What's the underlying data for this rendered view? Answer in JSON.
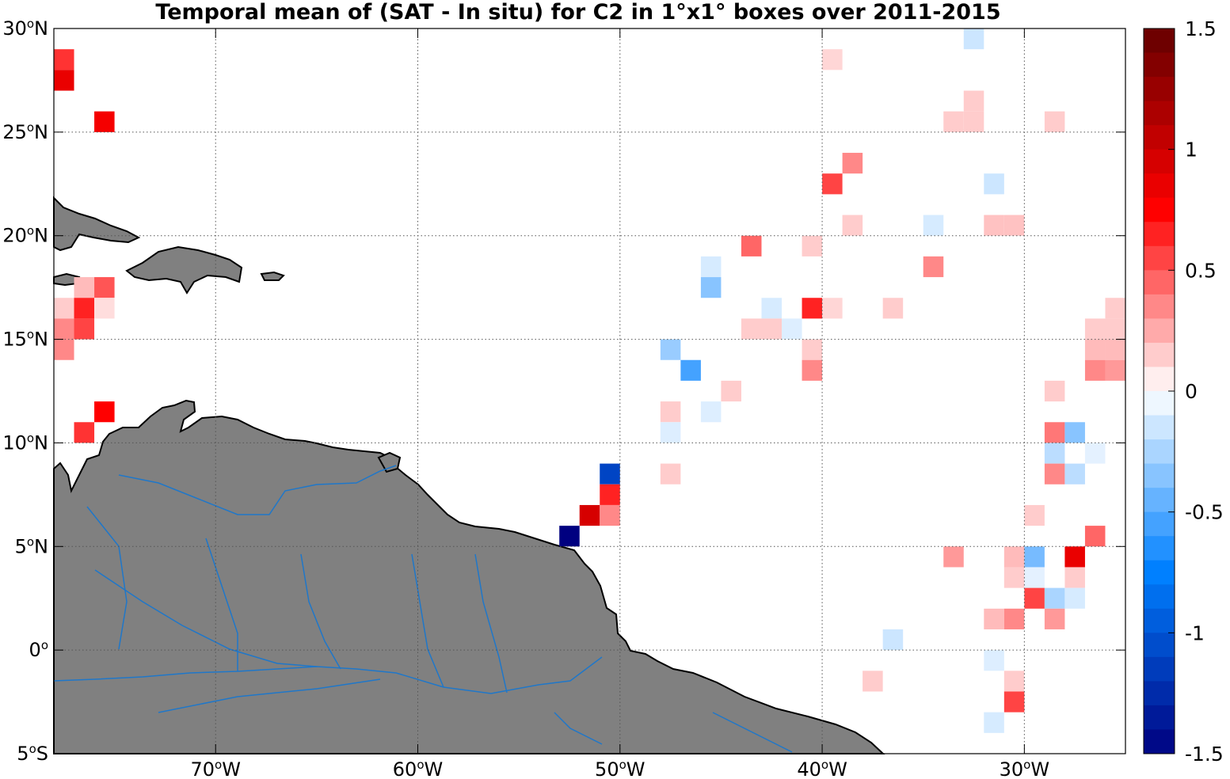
{
  "title": "Temporal mean of (SAT - In situ) for C2 in 1°x1° boxes over 2011-2015",
  "axes": {
    "lon_range": [
      -78,
      -25
    ],
    "lat_range": [
      -5,
      30
    ],
    "lat_ticks": [
      {
        "value": 30,
        "deg": "30",
        "hemi": "N"
      },
      {
        "value": 25,
        "deg": "25",
        "hemi": "N"
      },
      {
        "value": 20,
        "deg": "20",
        "hemi": "N"
      },
      {
        "value": 15,
        "deg": "15",
        "hemi": "N"
      },
      {
        "value": 10,
        "deg": "10",
        "hemi": "N"
      },
      {
        "value": 5,
        "deg": "5",
        "hemi": "N"
      },
      {
        "value": 0,
        "deg": "0",
        "hemi": ""
      },
      {
        "value": -5,
        "deg": "5",
        "hemi": "S"
      }
    ],
    "lon_ticks": [
      {
        "value": -70,
        "deg": "70",
        "hemi": "W"
      },
      {
        "value": -60,
        "deg": "60",
        "hemi": "W"
      },
      {
        "value": -50,
        "deg": "50",
        "hemi": "W"
      },
      {
        "value": -40,
        "deg": "40",
        "hemi": "W"
      },
      {
        "value": -30,
        "deg": "30",
        "hemi": "W"
      }
    ],
    "grid": "dotted"
  },
  "colorbar": {
    "range": [
      -1.5,
      1.5
    ],
    "tick_labels": [
      "1.5",
      "1",
      "0.5",
      "0",
      "-0.5",
      "-1",
      "-1.5"
    ],
    "tick_values": [
      1.5,
      1,
      0.5,
      0,
      -0.5,
      -1,
      -1.5
    ],
    "colormap": "blue-white-red"
  },
  "colors": {
    "land": "#808080",
    "coastline": "#000000",
    "rivers": "#1f77c9",
    "grid": "#555555"
  },
  "chart_data": {
    "type": "heatmap",
    "cell_size_deg": 1,
    "value_unit": "SAT - In situ",
    "cells": [
      {
        "lon": -77.5,
        "lat": 28.5,
        "v": 0.6
      },
      {
        "lon": -77.5,
        "lat": 27.5,
        "v": 0.85
      },
      {
        "lon": -75.5,
        "lat": 25.5,
        "v": 0.8
      },
      {
        "lon": -76.5,
        "lat": 17.5,
        "v": 0.2
      },
      {
        "lon": -75.5,
        "lat": 17.5,
        "v": 0.5
      },
      {
        "lon": -77.5,
        "lat": 16.5,
        "v": 0.15
      },
      {
        "lon": -76.5,
        "lat": 16.5,
        "v": 0.65
      },
      {
        "lon": -75.5,
        "lat": 16.5,
        "v": 0.1
      },
      {
        "lon": -77.5,
        "lat": 15.5,
        "v": 0.35
      },
      {
        "lon": -76.5,
        "lat": 15.5,
        "v": 0.55
      },
      {
        "lon": -77.5,
        "lat": 14.5,
        "v": 0.35
      },
      {
        "lon": -75.5,
        "lat": 11.5,
        "v": 0.75
      },
      {
        "lon": -76.5,
        "lat": 10.5,
        "v": 0.6
      },
      {
        "lon": -50.5,
        "lat": 8.5,
        "v": -1.1
      },
      {
        "lon": -50.5,
        "lat": 7.5,
        "v": 0.65
      },
      {
        "lon": -51.5,
        "lat": 6.5,
        "v": 0.95
      },
      {
        "lon": -50.5,
        "lat": 6.5,
        "v": 0.35
      },
      {
        "lon": -52.5,
        "lat": 5.5,
        "v": -1.5
      },
      {
        "lon": -32.5,
        "lat": 29.5,
        "v": -0.15
      },
      {
        "lon": -39.5,
        "lat": 28.5,
        "v": 0.12
      },
      {
        "lon": -32.5,
        "lat": 26.5,
        "v": 0.15
      },
      {
        "lon": -33.5,
        "lat": 25.5,
        "v": 0.15
      },
      {
        "lon": -32.5,
        "lat": 25.5,
        "v": 0.15
      },
      {
        "lon": -28.5,
        "lat": 25.5,
        "v": 0.15
      },
      {
        "lon": -38.5,
        "lat": 23.5,
        "v": 0.35
      },
      {
        "lon": -39.5,
        "lat": 22.5,
        "v": 0.55
      },
      {
        "lon": -31.5,
        "lat": 22.5,
        "v": -0.15
      },
      {
        "lon": -38.5,
        "lat": 20.5,
        "v": 0.15
      },
      {
        "lon": -34.5,
        "lat": 20.5,
        "v": -0.12
      },
      {
        "lon": -31.5,
        "lat": 20.5,
        "v": 0.18
      },
      {
        "lon": -30.5,
        "lat": 20.5,
        "v": 0.18
      },
      {
        "lon": -43.5,
        "lat": 19.5,
        "v": 0.45
      },
      {
        "lon": -40.5,
        "lat": 19.5,
        "v": 0.15
      },
      {
        "lon": -45.5,
        "lat": 18.5,
        "v": -0.12
      },
      {
        "lon": -34.5,
        "lat": 18.5,
        "v": 0.35
      },
      {
        "lon": -45.5,
        "lat": 17.5,
        "v": -0.35
      },
      {
        "lon": -42.5,
        "lat": 16.5,
        "v": -0.12
      },
      {
        "lon": -40.5,
        "lat": 16.5,
        "v": 0.65
      },
      {
        "lon": -39.5,
        "lat": 16.5,
        "v": 0.12
      },
      {
        "lon": -36.5,
        "lat": 16.5,
        "v": 0.15
      },
      {
        "lon": -25.5,
        "lat": 16.5,
        "v": 0.15
      },
      {
        "lon": -43.5,
        "lat": 15.5,
        "v": 0.15
      },
      {
        "lon": -42.5,
        "lat": 15.5,
        "v": 0.15
      },
      {
        "lon": -41.5,
        "lat": 15.5,
        "v": -0.1
      },
      {
        "lon": -26.5,
        "lat": 15.5,
        "v": 0.15
      },
      {
        "lon": -25.5,
        "lat": 15.5,
        "v": 0.15
      },
      {
        "lon": -47.5,
        "lat": 14.5,
        "v": -0.3
      },
      {
        "lon": -40.5,
        "lat": 14.5,
        "v": 0.15
      },
      {
        "lon": -26.5,
        "lat": 14.5,
        "v": 0.2
      },
      {
        "lon": -25.5,
        "lat": 14.5,
        "v": 0.2
      },
      {
        "lon": -46.5,
        "lat": 13.5,
        "v": -0.55
      },
      {
        "lon": -40.5,
        "lat": 13.5,
        "v": 0.35
      },
      {
        "lon": -26.5,
        "lat": 13.5,
        "v": 0.35
      },
      {
        "lon": -25.5,
        "lat": 13.5,
        "v": 0.3
      },
      {
        "lon": -44.5,
        "lat": 12.5,
        "v": 0.15
      },
      {
        "lon": -28.5,
        "lat": 12.5,
        "v": 0.15
      },
      {
        "lon": -47.5,
        "lat": 11.5,
        "v": 0.15
      },
      {
        "lon": -45.5,
        "lat": 11.5,
        "v": -0.1
      },
      {
        "lon": -47.5,
        "lat": 10.5,
        "v": -0.1
      },
      {
        "lon": -28.5,
        "lat": 10.5,
        "v": 0.4
      },
      {
        "lon": -27.5,
        "lat": 10.5,
        "v": -0.35
      },
      {
        "lon": -28.5,
        "lat": 9.5,
        "v": -0.2
      },
      {
        "lon": -26.5,
        "lat": 9.5,
        "v": -0.08
      },
      {
        "lon": -47.5,
        "lat": 8.5,
        "v": 0.15
      },
      {
        "lon": -28.5,
        "lat": 8.5,
        "v": 0.35
      },
      {
        "lon": -27.5,
        "lat": 8.5,
        "v": -0.2
      },
      {
        "lon": -29.5,
        "lat": 6.5,
        "v": 0.15
      },
      {
        "lon": -26.5,
        "lat": 5.5,
        "v": 0.45
      },
      {
        "lon": -33.5,
        "lat": 4.5,
        "v": 0.3
      },
      {
        "lon": -30.5,
        "lat": 4.5,
        "v": 0.2
      },
      {
        "lon": -29.5,
        "lat": 4.5,
        "v": -0.4
      },
      {
        "lon": -27.5,
        "lat": 4.5,
        "v": 0.85
      },
      {
        "lon": -30.5,
        "lat": 3.5,
        "v": 0.15
      },
      {
        "lon": -29.5,
        "lat": 3.5,
        "v": -0.08
      },
      {
        "lon": -27.5,
        "lat": 3.5,
        "v": 0.15
      },
      {
        "lon": -29.5,
        "lat": 2.5,
        "v": 0.55
      },
      {
        "lon": -28.5,
        "lat": 2.5,
        "v": -0.25
      },
      {
        "lon": -27.5,
        "lat": 2.5,
        "v": -0.12
      },
      {
        "lon": -31.5,
        "lat": 1.5,
        "v": 0.2
      },
      {
        "lon": -30.5,
        "lat": 1.5,
        "v": 0.35
      },
      {
        "lon": -28.5,
        "lat": 1.5,
        "v": 0.3
      },
      {
        "lon": -36.5,
        "lat": 0.5,
        "v": -0.15
      },
      {
        "lon": -31.5,
        "lat": -0.5,
        "v": -0.1
      },
      {
        "lon": -37.5,
        "lat": -1.5,
        "v": 0.15
      },
      {
        "lon": -30.5,
        "lat": -1.5,
        "v": 0.15
      },
      {
        "lon": -30.5,
        "lat": -2.5,
        "v": 0.55
      },
      {
        "lon": -31.5,
        "lat": -3.5,
        "v": -0.12
      }
    ]
  }
}
